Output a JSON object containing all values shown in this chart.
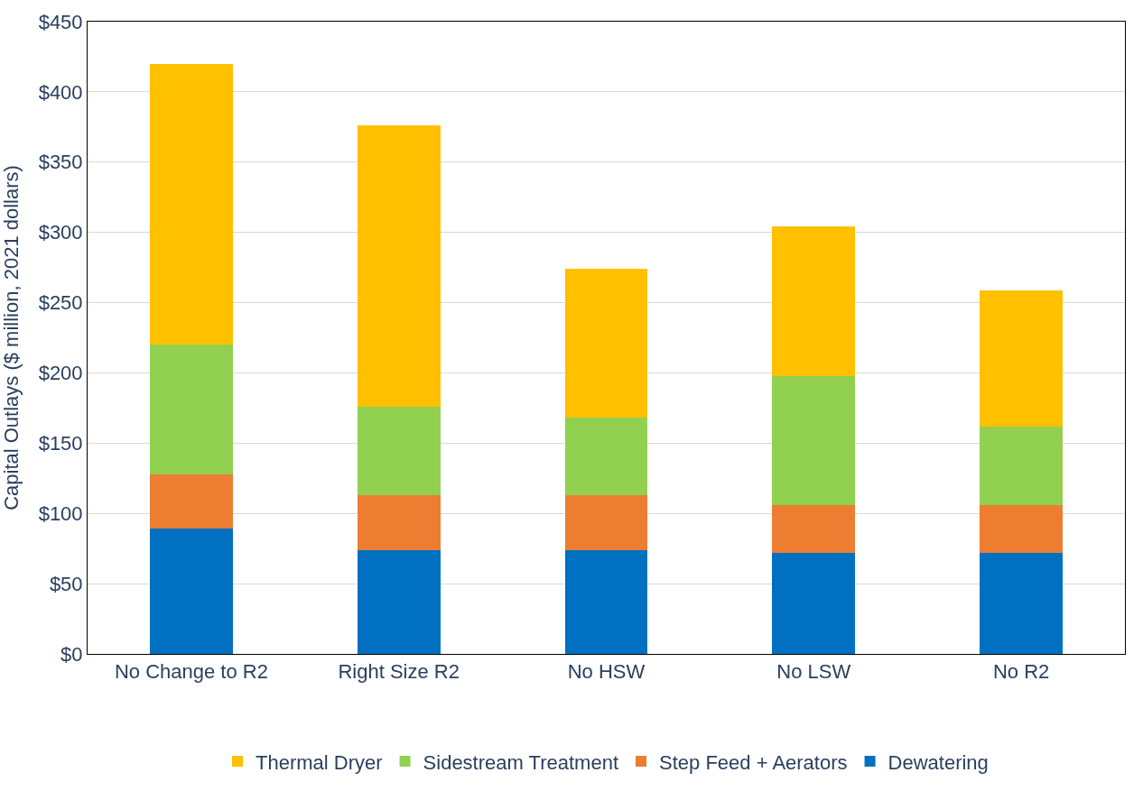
{
  "chart_data": {
    "type": "bar",
    "stacked": true,
    "ylabel": "Capital Outlays ($ million, 2021 dollars)",
    "categories": [
      "No Change to R2",
      "Right Size R2",
      "No HSW",
      "No LSW",
      "No R2"
    ],
    "series": [
      {
        "name": "Dewatering",
        "color": "#0070c0",
        "values": [
          89,
          74,
          74,
          72,
          72
        ]
      },
      {
        "name": "Step Feed + Aerators",
        "color": "#ed7d31",
        "values": [
          39,
          39,
          39,
          34,
          34
        ]
      },
      {
        "name": "Sidestream Treatment",
        "color": "#92d050",
        "values": [
          92,
          63,
          55,
          92,
          56
        ]
      },
      {
        "name": "Thermal Dryer",
        "color": "#ffc000",
        "values": [
          200,
          200,
          106,
          106,
          97
        ]
      }
    ],
    "ylim": [
      0,
      450
    ],
    "yticks": [
      {
        "value": 0,
        "label": "$0"
      },
      {
        "value": 50,
        "label": "$50"
      },
      {
        "value": 100,
        "label": "$100"
      },
      {
        "value": 150,
        "label": "$150"
      },
      {
        "value": 200,
        "label": "$200"
      },
      {
        "value": 250,
        "label": "$250"
      },
      {
        "value": 300,
        "label": "$300"
      },
      {
        "value": 350,
        "label": "$350"
      },
      {
        "value": 400,
        "label": "$400"
      },
      {
        "value": 450,
        "label": "$450"
      }
    ],
    "grid": "y",
    "legend": "bottom"
  }
}
